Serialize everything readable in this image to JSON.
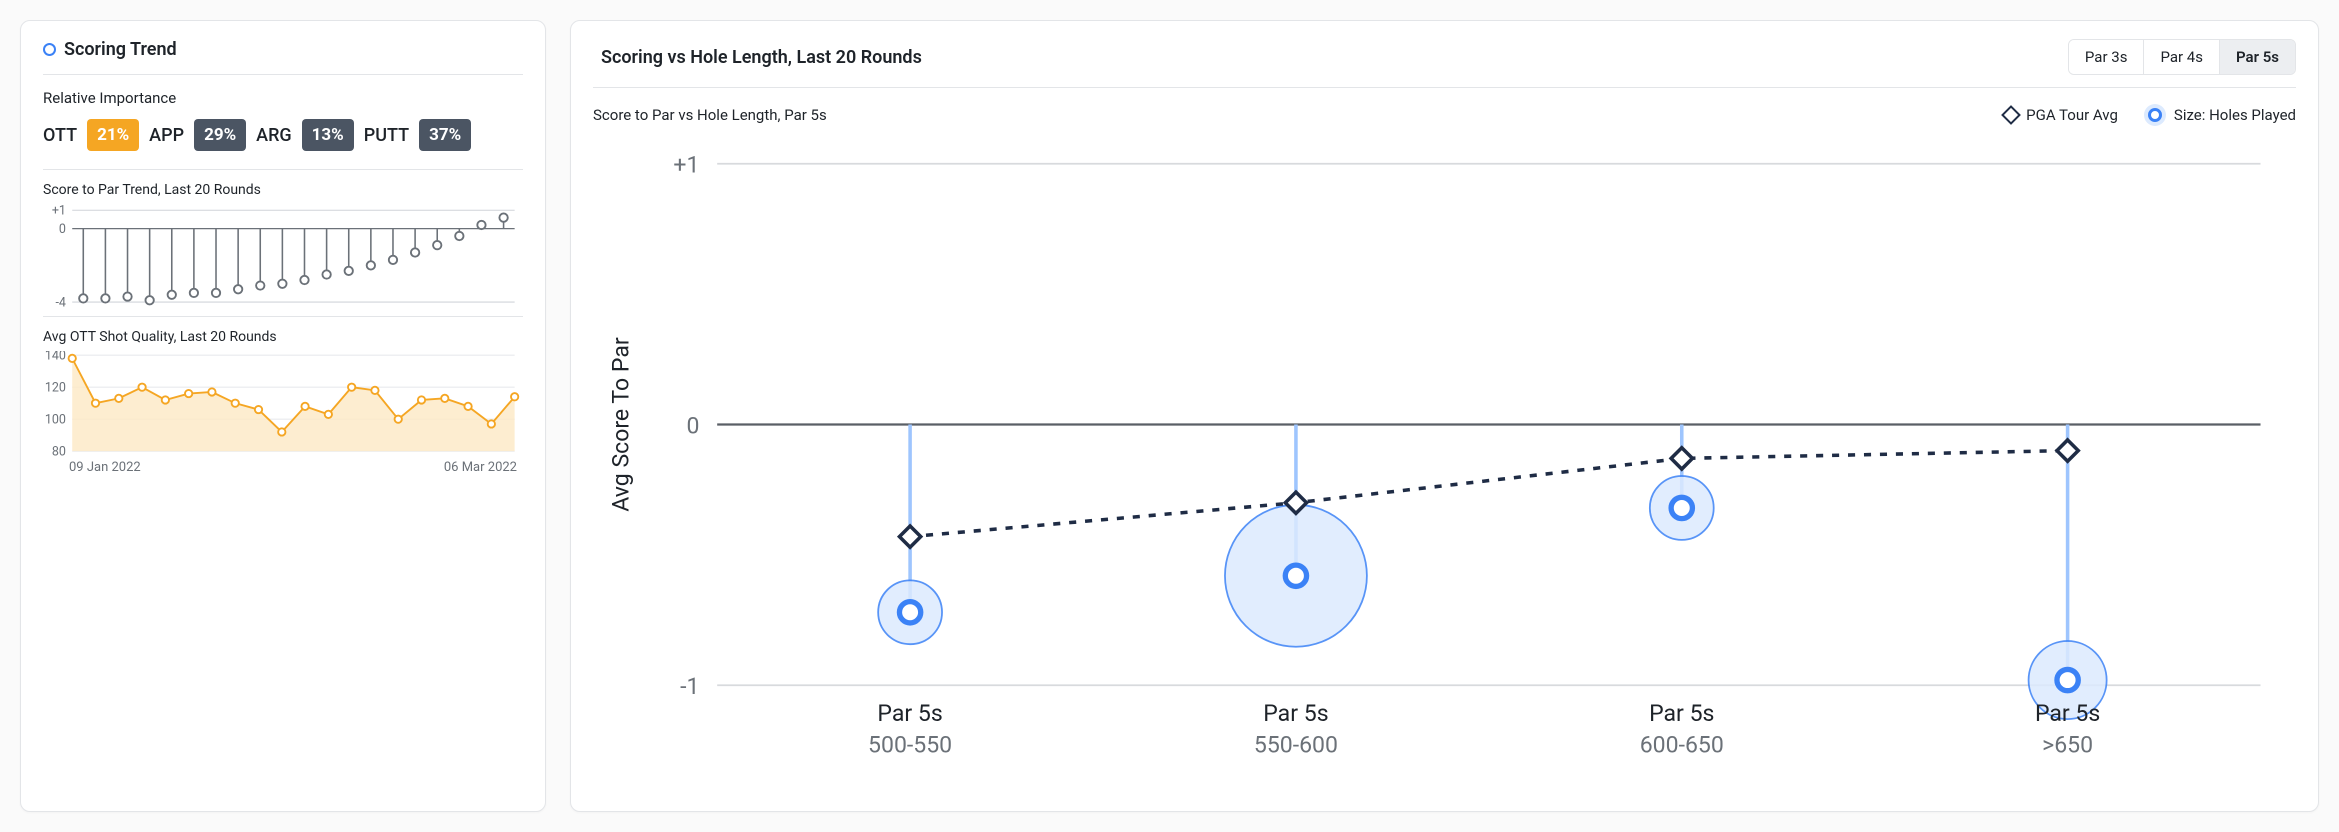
{
  "left": {
    "title": "Scoring Trend",
    "importance_label": "Relative Importance",
    "importance": [
      {
        "label": "OTT",
        "value": "21%",
        "color": "#f5a623"
      },
      {
        "label": "APP",
        "value": "29%",
        "color": "#4b5563"
      },
      {
        "label": "ARG",
        "value": "13%",
        "color": "#4b5563"
      },
      {
        "label": "PUTT",
        "value": "37%",
        "color": "#4b5563"
      }
    ],
    "score_chart": {
      "title": "Score to Par Trend, Last 20 Rounds",
      "ylim": [
        -4,
        1
      ],
      "yticks": [
        1,
        0,
        -4
      ],
      "ytick_labels": [
        "+1",
        "0",
        "-4"
      ],
      "grid_color": "#d0d4d9",
      "baseline_color": "#6b7178",
      "stroke_color": "#6b7178",
      "values": [
        -3.8,
        -3.8,
        -3.7,
        -3.9,
        -3.6,
        -3.5,
        -3.5,
        -3.3,
        -3.1,
        -3.0,
        -2.8,
        -2.5,
        -2.3,
        -2.0,
        -1.7,
        -1.3,
        -0.9,
        -0.4,
        0.2,
        0.6
      ]
    },
    "ott_chart": {
      "title": "Avg OTT Shot Quality, Last 20 Rounds",
      "ylim": [
        80,
        140
      ],
      "yticks": [
        140,
        120,
        100,
        80
      ],
      "stroke_color": "#f5a623",
      "fill_color": "#fde8c4",
      "grid_color": "#e8eaed",
      "values": [
        138,
        110,
        113,
        120,
        112,
        116,
        117,
        110,
        106,
        92,
        108,
        103,
        120,
        118,
        100,
        112,
        113,
        108,
        97,
        114
      ]
    },
    "date_start": "09 Jan 2022",
    "date_end": "06 Mar 2022"
  },
  "right": {
    "title": "Scoring vs Hole Length, Last 20 Rounds",
    "tabs": [
      "Par 3s",
      "Par 4s",
      "Par 5s"
    ],
    "active_tab": 2,
    "subtitle": "Score to Par vs Hole Length, Par 5s",
    "legend_pga": "PGA Tour Avg",
    "legend_size": "Size: Holes Played",
    "chart": {
      "ylim": [
        -1,
        1
      ],
      "yticks": [
        1,
        0,
        -1
      ],
      "ytick_labels": [
        "+1",
        "0",
        "-1"
      ],
      "y_title": "Avg Score To Par",
      "grid_color": "#d8dadd",
      "zero_color": "#5a5f66",
      "stem_color": "#9ec5fe",
      "player_fill": "#dceafe",
      "player_stroke": "#3b82f6",
      "pga_line_color": "#1f2c45",
      "categories": [
        {
          "l1": "Par 5s",
          "l2": "500-550",
          "player": -0.72,
          "size": 18,
          "pga": -0.43
        },
        {
          "l1": "Par 5s",
          "l2": "550-600",
          "player": -0.58,
          "size": 40,
          "pga": -0.3
        },
        {
          "l1": "Par 5s",
          "l2": "600-650",
          "player": -0.32,
          "size": 18,
          "pga": -0.13
        },
        {
          "l1": "Par 5s",
          "l2": ">650",
          "player": -0.98,
          "size": 22,
          "pga": -0.1
        }
      ]
    }
  }
}
